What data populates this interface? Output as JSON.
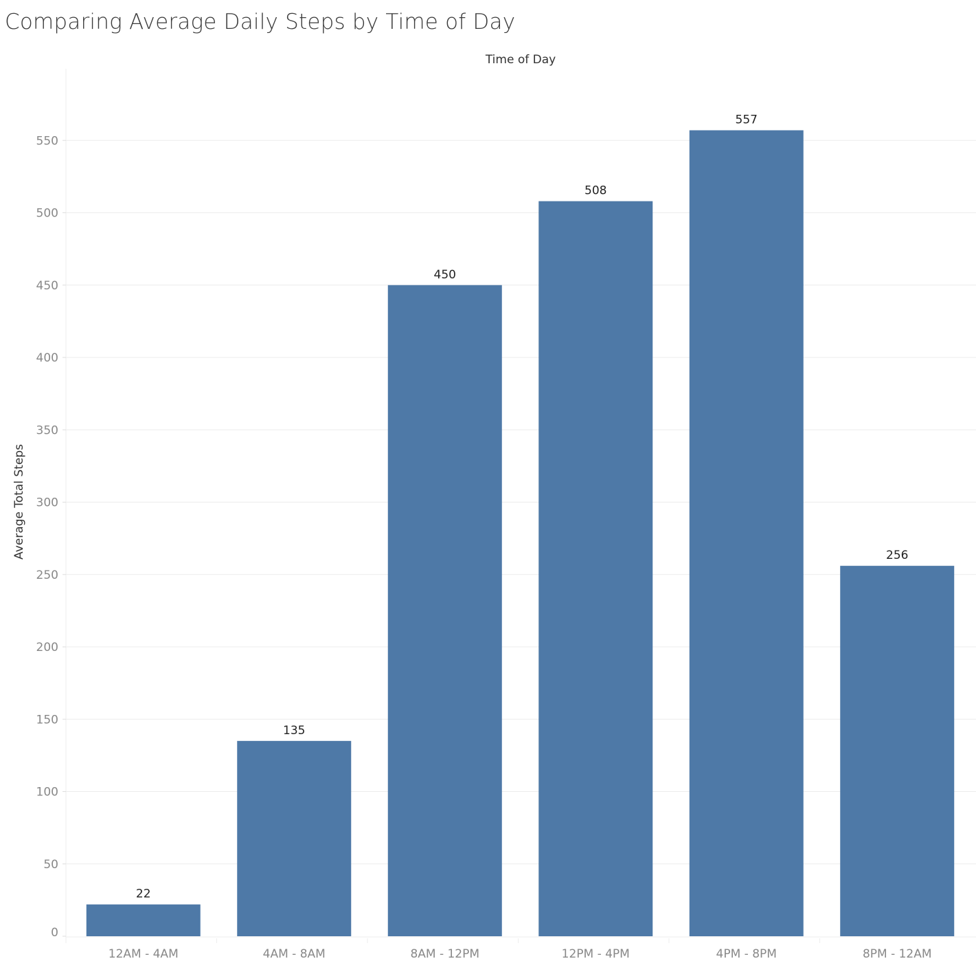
{
  "chart_data": {
    "type": "bar",
    "title": "Comparing Average Daily Steps by Time of Day",
    "xlabel": "Time of Day",
    "ylabel": "Average Total Steps",
    "categories": [
      "12AM - 4AM",
      "4AM - 8AM",
      "8AM - 12PM",
      "12PM - 4PM",
      "4PM - 8PM",
      "8PM - 12AM"
    ],
    "values": [
      22,
      135,
      450,
      508,
      557,
      256
    ],
    "data_labels": [
      "22",
      "135",
      "450",
      "508",
      "557",
      "256"
    ],
    "y_ticks": [
      0,
      50,
      100,
      150,
      200,
      250,
      300,
      350,
      400,
      450,
      500,
      550
    ],
    "ylim": [
      0,
      600
    ],
    "grid": true,
    "bar_color": "#4e79a7",
    "gridline_color": "#ececec",
    "legend": "none"
  }
}
